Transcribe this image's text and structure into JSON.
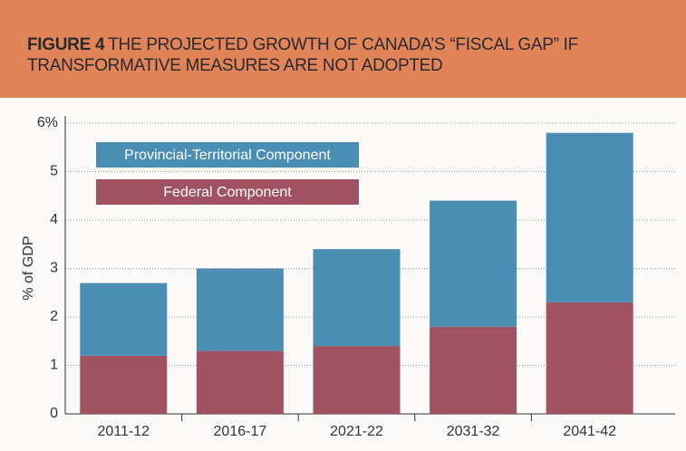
{
  "chart_data": {
    "type": "stacked_bar",
    "figure_label": "FIGURE 4",
    "title": "THE PROJECTED GROWTH OF CANADA’S “FISCAL GAP” IF TRANSFORMATIVE MEASURES ARE NOT ADOPTED",
    "y_label": "% of GDP",
    "categories": [
      "2011-12",
      "2016-17",
      "2021-22",
      "2031-32",
      "2041-42"
    ],
    "series": [
      {
        "name": "Federal Component",
        "color": "#a05262",
        "values": [
          1.2,
          1.3,
          1.4,
          1.8,
          2.3
        ]
      },
      {
        "name": "Provincial-Territorial Component",
        "color": "#4a8fb3",
        "values": [
          1.5,
          1.7,
          2.0,
          2.6,
          3.5
        ]
      }
    ],
    "ylim": [
      0,
      6
    ],
    "yticks": [
      0,
      1,
      2,
      3,
      4,
      5,
      {
        "value": 6,
        "label": "6%"
      }
    ],
    "grid": true
  }
}
